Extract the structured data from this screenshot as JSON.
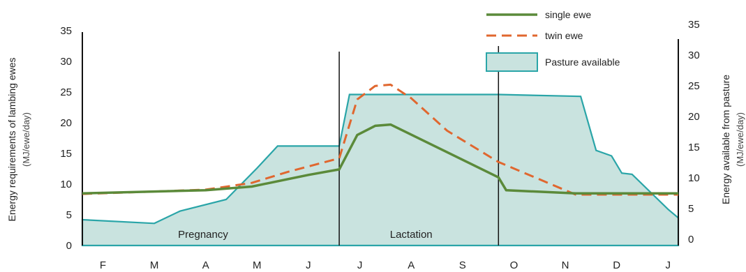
{
  "chart_data": {
    "type": "line",
    "x_months": [
      "F",
      "M",
      "A",
      "M",
      "J",
      "J",
      "A",
      "S",
      "O",
      "N",
      "D",
      "J"
    ],
    "x_range": [
      0.6,
      12.2
    ],
    "y_left": {
      "label": "Energy requirements of lambing ewes",
      "unit": "(MJ/ewe/day)",
      "ticks": [
        0,
        5,
        10,
        15,
        20,
        25,
        30,
        35
      ],
      "range": [
        0,
        35
      ]
    },
    "y_right": {
      "label": "Energy available from pasture",
      "unit": "(MJ/ewe/day)",
      "ticks": [
        0,
        5,
        10,
        15,
        20,
        25,
        30,
        35
      ],
      "range": [
        0,
        35
      ]
    },
    "series": [
      {
        "name": "single ewe",
        "style": "solid",
        "color": "#5b8a3a",
        "points": [
          [
            0.6,
            8.5
          ],
          [
            2.0,
            8.8
          ],
          [
            3.0,
            9.0
          ],
          [
            3.9,
            9.6
          ],
          [
            5.0,
            11.5
          ],
          [
            5.6,
            12.4
          ],
          [
            5.95,
            18.0
          ],
          [
            6.3,
            19.5
          ],
          [
            6.6,
            19.7
          ],
          [
            8.7,
            11.1
          ],
          [
            8.85,
            9.0
          ],
          [
            10.2,
            8.5
          ],
          [
            12.2,
            8.5
          ]
        ]
      },
      {
        "name": "twin ewe",
        "style": "dashed",
        "color": "#e0672f",
        "points": [
          [
            0.6,
            8.4
          ],
          [
            2.0,
            8.8
          ],
          [
            3.0,
            9.1
          ],
          [
            3.9,
            10.2
          ],
          [
            4.6,
            12.0
          ],
          [
            5.6,
            14.2
          ],
          [
            5.95,
            23.8
          ],
          [
            6.3,
            26.0
          ],
          [
            6.6,
            26.2
          ],
          [
            7.0,
            24.0
          ],
          [
            7.7,
            18.7
          ],
          [
            8.7,
            13.6
          ],
          [
            10.2,
            8.3
          ],
          [
            12.2,
            8.3
          ]
        ]
      },
      {
        "name": "Pasture available",
        "style": "area",
        "color": "#2aa5a8",
        "fill": "#c9e3df",
        "points": [
          [
            0.6,
            4.2
          ],
          [
            2.0,
            3.6
          ],
          [
            2.5,
            5.6
          ],
          [
            3.4,
            7.5
          ],
          [
            4.0,
            12.6
          ],
          [
            4.4,
            16.2
          ],
          [
            5.6,
            16.2
          ],
          [
            5.8,
            24.6
          ],
          [
            8.7,
            24.6
          ],
          [
            10.3,
            24.3
          ],
          [
            10.6,
            15.5
          ],
          [
            10.9,
            14.6
          ],
          [
            11.1,
            11.8
          ],
          [
            11.3,
            11.6
          ],
          [
            12.0,
            5.9
          ],
          [
            12.2,
            4.5
          ]
        ]
      }
    ],
    "phases": [
      {
        "label": "Pregnancy",
        "x_start": 0.6,
        "x_end": 5.6
      },
      {
        "label": "Lactation",
        "x_start": 5.6,
        "x_end": 8.7
      }
    ],
    "dividers_x": [
      5.6,
      8.7
    ],
    "legend_position": "top-right",
    "grid": false
  }
}
